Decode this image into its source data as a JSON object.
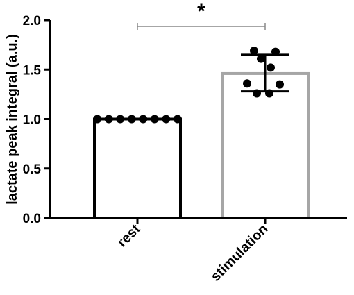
{
  "chart_data": {
    "type": "bar",
    "ylabel": "lactate peak integral (a.u.)",
    "ylim": [
      0,
      2.0
    ],
    "yticks": [
      0.0,
      0.5,
      1.0,
      1.5,
      2.0
    ],
    "ytick_labels": [
      "0.0",
      "0.5",
      "1.0",
      "1.5",
      "2.0"
    ],
    "categories": [
      "rest",
      "stimulation"
    ],
    "values": [
      1.0,
      1.46
    ],
    "error_low": [
      1.0,
      1.28
    ],
    "error_high": [
      1.0,
      1.65
    ],
    "points": [
      [
        1.0,
        1.0,
        1.0,
        1.0,
        1.0,
        1.0,
        1.0,
        1.0
      ],
      [
        1.69,
        1.68,
        1.61,
        1.52,
        1.36,
        1.35,
        1.26,
        1.26
      ]
    ],
    "significance": {
      "label": "*",
      "between": [
        0,
        1
      ]
    },
    "colors": {
      "rest": "#000000",
      "stimulation": "#a6a6a6",
      "bracket": "#888888"
    }
  }
}
